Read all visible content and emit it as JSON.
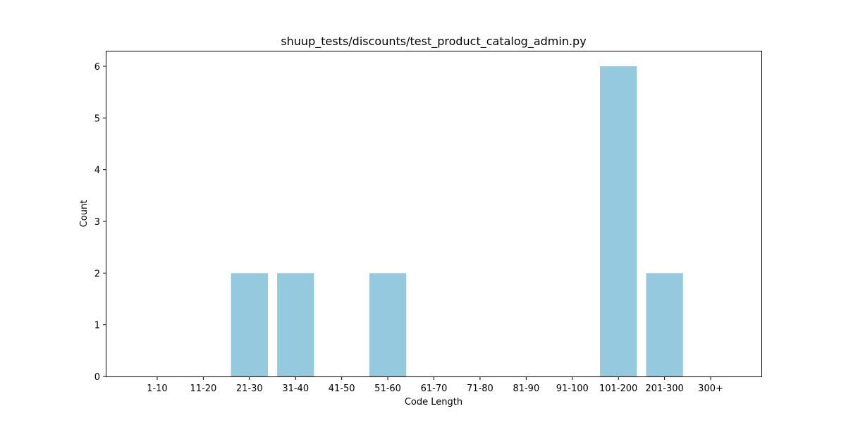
{
  "chart_data": {
    "type": "bar",
    "title": "shuup_tests/discounts/test_product_catalog_admin.py",
    "xlabel": "Code Length",
    "ylabel": "Count",
    "categories": [
      "1-10",
      "11-20",
      "21-30",
      "31-40",
      "41-50",
      "51-60",
      "61-70",
      "71-80",
      "81-90",
      "91-100",
      "101-200",
      "201-300",
      "300+"
    ],
    "values": [
      0,
      0,
      2,
      2,
      0,
      2,
      0,
      0,
      0,
      0,
      6,
      2,
      0
    ],
    "ylim": [
      0,
      6.3
    ],
    "yticks": [
      0,
      1,
      2,
      3,
      4,
      5,
      6
    ],
    "bar_color": "#95c9de",
    "grid": false,
    "legend": "none"
  }
}
